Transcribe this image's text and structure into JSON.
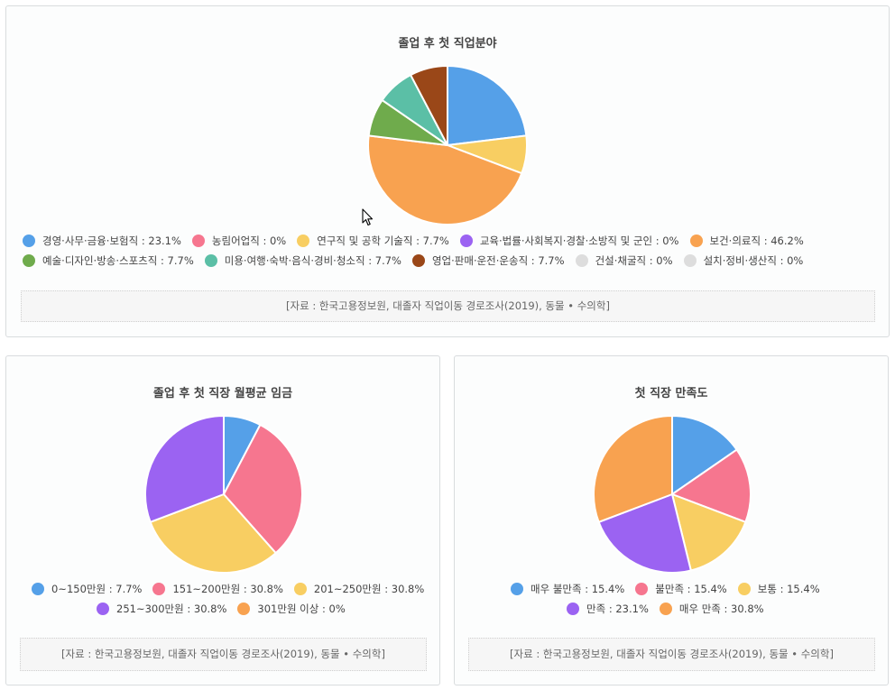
{
  "charts": [
    {
      "type": "pie",
      "title": "졸업 후 첫 직업분야",
      "colors": [
        "#55a0e8",
        "#f6768f",
        "#f8ce62",
        "#9b63f2",
        "#f8a250",
        "#6fab4c",
        "#5bbfa6",
        "#9a4718",
        "#dddddd",
        "#dddddd"
      ],
      "legend_labels": [
        "경영·사무·금융·보험직 : 23.1%",
        "농림어업직 : 0%",
        "연구직 및 공학 기술직 : 7.7%",
        "교육·법률·사회복지·경찰·소방직 및 군인 : 0%",
        "보건·의료직 : 46.2%",
        "예술·디자인·방송·스포츠직 : 7.7%",
        "미용·여행·숙박·음식·경비·청소직 : 7.7%",
        "영업·판매·운전·운송직 : 7.7%",
        "건설·채굴직 : 0%",
        "설치·정비·생산직 : 0%"
      ],
      "values": [
        23.1,
        0,
        7.7,
        0,
        46.2,
        7.7,
        7.7,
        7.7,
        0,
        0
      ],
      "source": "[자료 : 한국고용정보원, 대졸자 직업이동 경로조사(2019), 동물 • 수의학]"
    },
    {
      "type": "pie",
      "title": "졸업 후 첫 직장 월평균 임금",
      "colors": [
        "#55a0e8",
        "#f6768f",
        "#f8ce62",
        "#9b63f2",
        "#f8a250"
      ],
      "legend_labels": [
        "0~150만원 : 7.7%",
        "151~200만원 : 30.8%",
        "201~250만원 : 30.8%",
        "251~300만원 : 30.8%",
        "301만원 이상 : 0%"
      ],
      "values": [
        7.7,
        30.8,
        30.8,
        30.8,
        0
      ],
      "source": "[자료 : 한국고용정보원, 대졸자 직업이동 경로조사(2019), 동물 • 수의학]"
    },
    {
      "type": "pie",
      "title": "첫 직장 만족도",
      "colors": [
        "#55a0e8",
        "#f6768f",
        "#f8ce62",
        "#9b63f2",
        "#f8a250"
      ],
      "legend_labels": [
        "매우 불만족 : 15.4%",
        "불만족 : 15.4%",
        "보통 : 15.4%",
        "만족 : 23.1%",
        "매우 만족 : 30.8%"
      ],
      "values": [
        15.4,
        15.4,
        15.4,
        23.1,
        30.8
      ],
      "source": "[자료 : 한국고용정보원, 대졸자 직업이동 경로조사(2019), 동물 • 수의학]"
    }
  ],
  "chart_data": [
    {
      "type": "pie",
      "title": "졸업 후 첫 직업분야",
      "categories": [
        "경영·사무·금융·보험직",
        "농림어업직",
        "연구직 및 공학 기술직",
        "교육·법률·사회복지·경찰·소방직 및 군인",
        "보건·의료직",
        "예술·디자인·방송·스포츠직",
        "미용·여행·숙박·음식·경비·청소직",
        "영업·판매·운전·운송직",
        "건설·채굴직",
        "설치·정비·생산직"
      ],
      "values": [
        23.1,
        0,
        7.7,
        0,
        46.2,
        7.7,
        7.7,
        7.7,
        0,
        0
      ],
      "unit": "%",
      "legend_position": "bottom"
    },
    {
      "type": "pie",
      "title": "졸업 후 첫 직장 월평균 임금",
      "categories": [
        "0~150만원",
        "151~200만원",
        "201~250만원",
        "251~300만원",
        "301만원 이상"
      ],
      "values": [
        7.7,
        30.8,
        30.8,
        30.8,
        0
      ],
      "unit": "%",
      "legend_position": "bottom"
    },
    {
      "type": "pie",
      "title": "첫 직장 만족도",
      "categories": [
        "매우 불만족",
        "불만족",
        "보통",
        "만족",
        "매우 만족"
      ],
      "values": [
        15.4,
        15.4,
        15.4,
        23.1,
        30.8
      ],
      "unit": "%",
      "legend_position": "bottom"
    }
  ]
}
